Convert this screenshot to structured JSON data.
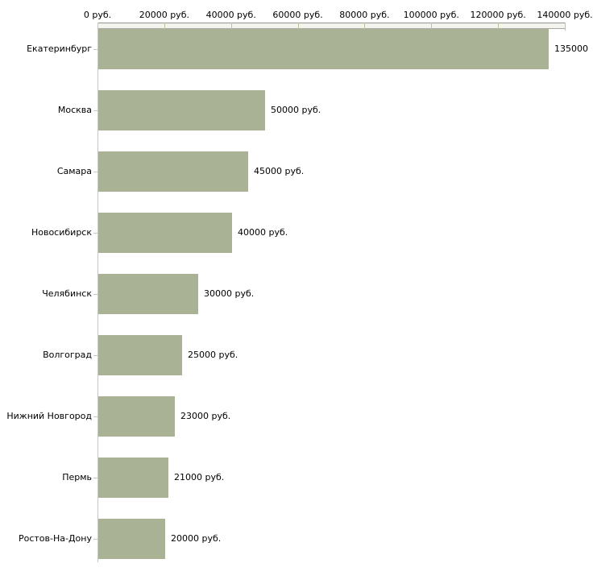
{
  "chart_data": {
    "type": "bar",
    "orientation": "horizontal",
    "title": "",
    "xlabel": "",
    "ylabel": "",
    "categories": [
      "Екатеринбург",
      "Москва",
      "Самара",
      "Новосибирск",
      "Челябинск",
      "Волгоград",
      "Нижний Новгород",
      "Пермь",
      "Ростов-На-Дону"
    ],
    "values": [
      135000,
      50000,
      45000,
      40000,
      30000,
      25000,
      23000,
      21000,
      20000
    ],
    "value_labels": [
      "135000",
      "50000 руб.",
      "45000 руб.",
      "40000 руб.",
      "30000 руб.",
      "25000 руб.",
      "23000 руб.",
      "21000 руб.",
      "20000 руб."
    ],
    "x_tick_labels": [
      "0 руб.",
      "20000 руб.",
      "40000 руб.",
      "60000 руб.",
      "80000 руб.",
      "100000 руб.",
      "120000 руб.",
      "140000 руб."
    ],
    "xlim": [
      0,
      140000
    ],
    "x_axis_position": "top",
    "grid": false,
    "legend": false,
    "bar_color": "#aab296",
    "axis_band_fill": "#f4f4ee",
    "axis_line_color": "#c6c6c6",
    "tick_color": "#c2c29c",
    "text_color": "#000000",
    "background_color": "#ffffff"
  }
}
